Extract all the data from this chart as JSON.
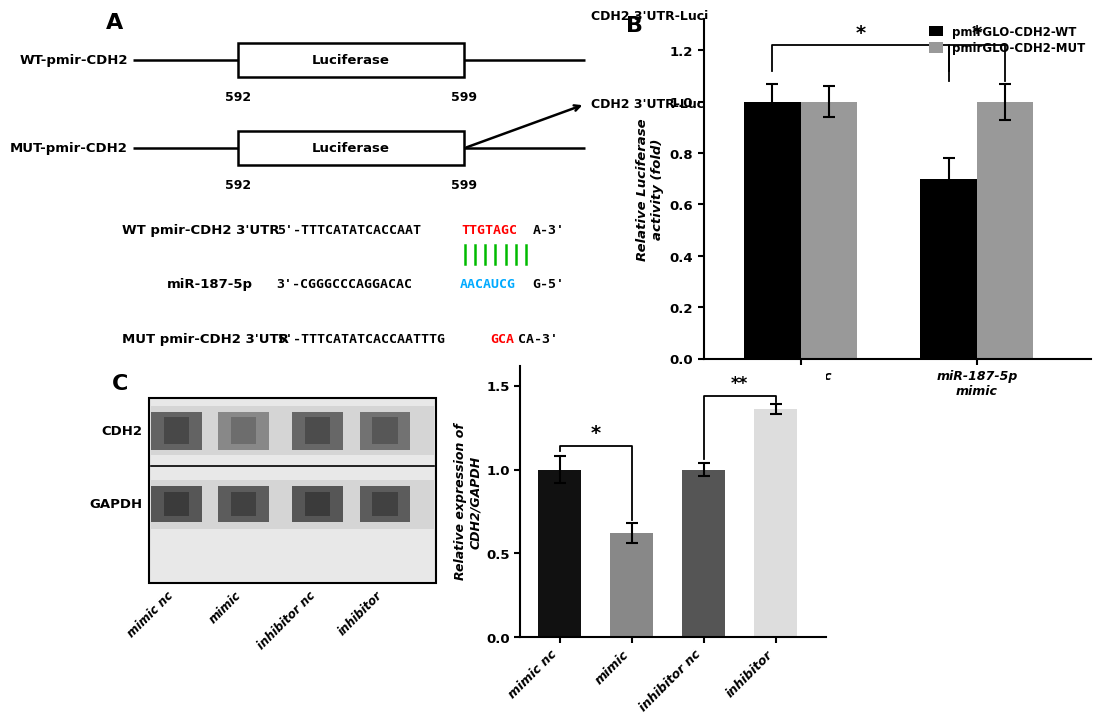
{
  "panel_A": {
    "wt_label": "WT-pmir-CDH2",
    "mut_label": "MUT-pmir-CDH2",
    "luciferase_text": "Luciferase",
    "arrow_label": "CDH2 3'UTR-Luci",
    "num_left": "592",
    "num_right": "599",
    "wt_seq_label": "WT pmir-CDH2 3'UTR",
    "wt_seq_prefix": "5'-TTTCATATCACCAAT",
    "wt_seq_red": "TTGTAGC",
    "wt_seq_suffix": "A-3'",
    "mir_label": "miR-187-5p",
    "mir_seq_prefix": "3'-CGGGCCCAGGACAC",
    "mir_seq_cyan": "AACAUCG",
    "mir_seq_suffix": "G-5'",
    "mut_seq_label": "MUT pmir-CDH2 3'UTR",
    "mut_seq_prefix": "5'-TTTCATATCACCAATTTG",
    "mut_seq_red": "GCA",
    "mut_seq_suffix": "CA-3'"
  },
  "panel_B": {
    "categories": [
      "mimic nc",
      "miR-187-5p\nmimic"
    ],
    "wt_values": [
      1.0,
      0.7
    ],
    "mut_values": [
      1.0,
      1.0
    ],
    "wt_errors": [
      0.07,
      0.08
    ],
    "mut_errors": [
      0.06,
      0.07
    ],
    "wt_color": "#000000",
    "mut_color": "#999999",
    "ylabel": "Relative Luciferase\nactivity (fold)",
    "yticks": [
      0.0,
      0.2,
      0.4,
      0.6,
      0.8,
      1.0,
      1.2
    ],
    "legend_wt": "pmirGLO-CDH2-WT",
    "legend_mut": "pmirGLO-CDH2-MUT"
  },
  "panel_C_bar": {
    "categories": [
      "mimic nc",
      "mimic",
      "inhibitor nc",
      "inhibitor"
    ],
    "values": [
      1.0,
      0.62,
      1.0,
      1.36
    ],
    "errors": [
      0.08,
      0.06,
      0.04,
      0.03
    ],
    "colors": [
      "#111111",
      "#888888",
      "#555555",
      "#dddddd"
    ],
    "ylabel": "Relative expression of\nCDH2/GAPDH",
    "yticks": [
      0.0,
      0.5,
      1.0,
      1.5
    ]
  },
  "background": "#ffffff"
}
